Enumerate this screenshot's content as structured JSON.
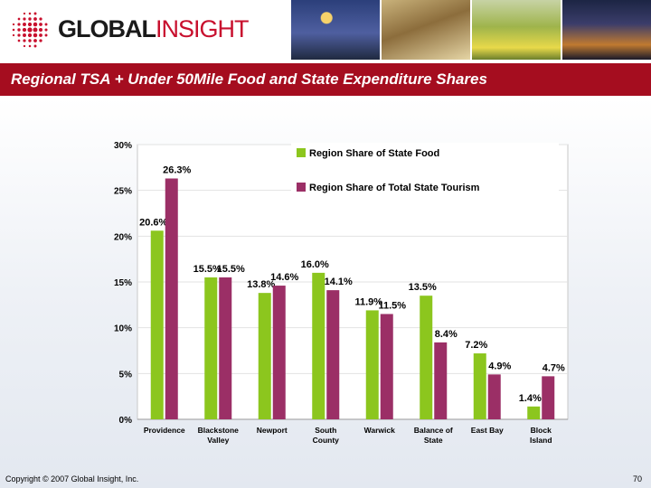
{
  "header": {
    "logo_global": "GLOBAL",
    "logo_insight": "INSIGHT"
  },
  "title": "Regional TSA + Under 50Mile Food and State Expenditure Shares",
  "footer": {
    "copyright": "Copyright © 2007 Global Insight, Inc.",
    "page_number": "70"
  },
  "colors": {
    "brand_red": "#a50d1f",
    "food_green": "#8cc61e",
    "tourism_purple": "#9b2f66"
  },
  "chart_data": {
    "type": "bar",
    "categories": [
      [
        "Providence"
      ],
      [
        "Blackstone",
        "Valley"
      ],
      [
        "Newport"
      ],
      [
        "South",
        "County"
      ],
      [
        "Warwick"
      ],
      [
        "Balance of",
        "State"
      ],
      [
        "East Bay"
      ],
      [
        "Block",
        "Island"
      ]
    ],
    "series": [
      {
        "name": "Region Share of State Food",
        "color": "#8cc61e",
        "values": [
          20.6,
          15.5,
          13.8,
          16.0,
          11.9,
          13.5,
          7.2,
          1.4
        ],
        "labels": [
          "20.6%",
          "15.5%",
          "13.8%",
          "16.0%",
          "11.9%",
          "13.5%",
          "7.2%",
          "1.4%"
        ]
      },
      {
        "name": "Region Share of Total State Tourism",
        "color": "#9b2f66",
        "values": [
          26.3,
          15.5,
          14.6,
          14.1,
          11.5,
          8.4,
          4.9,
          4.7
        ],
        "labels": [
          "26.3%",
          "15.5%",
          "14.6%",
          "14.1%",
          "11.5%",
          "8.4%",
          "4.9%",
          "4.7%"
        ]
      }
    ],
    "yticks": [
      "0%",
      "5%",
      "10%",
      "15%",
      "20%",
      "25%",
      "30%"
    ],
    "ylim": [
      0,
      30
    ],
    "grid": true,
    "legend": "top-right"
  }
}
